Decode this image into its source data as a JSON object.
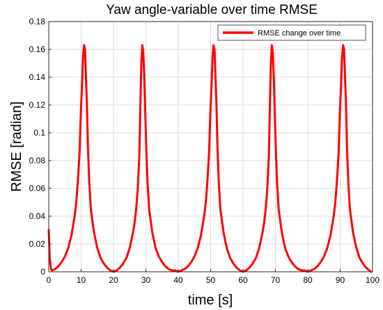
{
  "chart_data": {
    "type": "line",
    "title": "Yaw angle-variable over time RMSE",
    "xlabel": "time [s]",
    "ylabel": "RMSE [radian]",
    "xlim": [
      0,
      100
    ],
    "ylim": [
      0,
      0.18
    ],
    "xticks": [
      0,
      10,
      20,
      30,
      40,
      50,
      60,
      70,
      80,
      90,
      100
    ],
    "yticks": [
      0,
      0.02,
      0.04,
      0.06,
      0.08,
      0.1,
      0.12,
      0.14,
      0.16,
      0.18
    ],
    "xtick_labels": [
      "0",
      "10",
      "20",
      "30",
      "40",
      "50",
      "60",
      "70",
      "80",
      "90",
      "100"
    ],
    "ytick_labels": [
      "0",
      "0.02",
      "0.04",
      "0.06",
      "0.08",
      "0.1",
      "0.12",
      "0.14",
      "0.16",
      "0.18"
    ],
    "grid": true,
    "legend_position": "top-right",
    "series": [
      {
        "name": "RMSE change over time",
        "color": "#ff0000",
        "x": [
          0,
          0.3,
          0.7,
          1,
          2,
          3,
          4,
          5,
          6,
          7,
          8,
          8.5,
          9,
          9.5,
          10,
          10.3,
          10.6,
          10.9,
          11.2,
          11.5,
          11.8,
          12.1,
          12.5,
          13,
          14,
          15,
          16,
          17,
          18,
          19,
          20,
          21,
          22,
          23,
          24,
          25,
          26,
          26.5,
          27,
          27.5,
          28,
          28.3,
          28.6,
          28.9,
          29.2,
          29.5,
          29.8,
          30.1,
          30.5,
          31,
          32,
          33,
          34,
          35,
          36,
          37,
          38,
          39,
          40,
          41,
          42,
          43,
          44,
          45,
          46,
          47,
          48,
          48.5,
          49,
          49.5,
          50,
          50.3,
          50.6,
          50.9,
          51.2,
          51.5,
          51.8,
          52.1,
          52.5,
          53,
          54,
          55,
          56,
          57,
          58,
          59,
          60,
          61,
          62,
          63,
          64,
          65,
          66,
          66.5,
          67,
          67.5,
          68,
          68.3,
          68.6,
          68.9,
          69.2,
          69.5,
          69.8,
          70.1,
          70.5,
          71,
          72,
          73,
          74,
          75,
          76,
          77,
          78,
          79,
          80,
          81,
          82,
          83,
          84,
          85,
          86,
          87,
          88,
          88.5,
          89,
          89.5,
          90,
          90.3,
          90.6,
          90.9,
          91.2,
          91.5,
          91.8,
          92.1,
          92.5,
          93,
          94,
          95,
          96,
          97,
          98,
          99,
          99.5
        ],
        "y": [
          0.03,
          0.01,
          0.002,
          0.001,
          0.002,
          0.004,
          0.007,
          0.011,
          0.017,
          0.026,
          0.04,
          0.05,
          0.065,
          0.085,
          0.12,
          0.135,
          0.155,
          0.163,
          0.16,
          0.14,
          0.12,
          0.09,
          0.065,
          0.045,
          0.028,
          0.017,
          0.01,
          0.006,
          0.003,
          0.001,
          0,
          0.001,
          0.003,
          0.006,
          0.01,
          0.017,
          0.028,
          0.035,
          0.045,
          0.06,
          0.085,
          0.12,
          0.15,
          0.163,
          0.158,
          0.14,
          0.115,
          0.09,
          0.065,
          0.045,
          0.028,
          0.017,
          0.011,
          0.007,
          0.004,
          0.002,
          0.001,
          0.001,
          0,
          0.001,
          0.002,
          0.004,
          0.007,
          0.011,
          0.017,
          0.026,
          0.04,
          0.05,
          0.065,
          0.085,
          0.12,
          0.135,
          0.155,
          0.163,
          0.16,
          0.14,
          0.12,
          0.09,
          0.065,
          0.045,
          0.028,
          0.017,
          0.01,
          0.006,
          0.003,
          0.001,
          0,
          0.001,
          0.003,
          0.006,
          0.01,
          0.017,
          0.028,
          0.035,
          0.045,
          0.06,
          0.085,
          0.12,
          0.15,
          0.163,
          0.158,
          0.14,
          0.115,
          0.09,
          0.065,
          0.045,
          0.028,
          0.017,
          0.011,
          0.007,
          0.004,
          0.002,
          0.001,
          0.001,
          0,
          0.001,
          0.002,
          0.004,
          0.007,
          0.011,
          0.017,
          0.026,
          0.04,
          0.05,
          0.065,
          0.085,
          0.12,
          0.135,
          0.155,
          0.163,
          0.16,
          0.14,
          0.12,
          0.09,
          0.065,
          0.045,
          0.028,
          0.017,
          0.01,
          0.006,
          0.003,
          0.001,
          0
        ]
      }
    ]
  }
}
